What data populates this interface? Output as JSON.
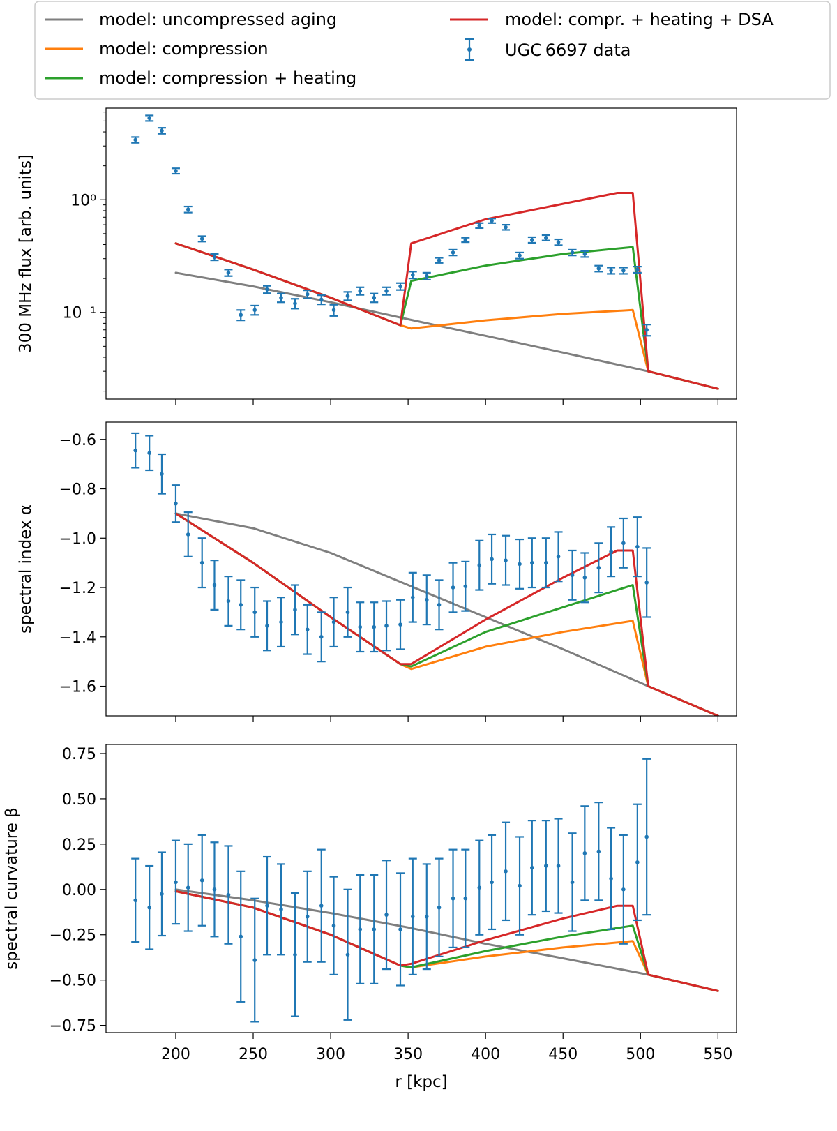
{
  "colors": {
    "gray": "#7f7f7f",
    "orange": "#ff7f0e",
    "green": "#2ca02c",
    "red": "#d62728",
    "blue": "#1f77b4"
  },
  "legend": {
    "entries": [
      {
        "key": "gray",
        "label": "model: uncompressed aging",
        "kind": "line"
      },
      {
        "key": "orange",
        "label": "model: compression",
        "kind": "line"
      },
      {
        "key": "green",
        "label": "model: compression + heating",
        "kind": "line"
      },
      {
        "key": "red",
        "label": "model: compr. + heating + DSA",
        "kind": "line"
      },
      {
        "key": "blue",
        "label": "UGC 6697 data",
        "kind": "errorbar"
      }
    ]
  },
  "chart_data": [
    {
      "type": "line",
      "panel": "flux",
      "ylabel": "300 MHz flux [arb. units]",
      "yscale": "log",
      "xlim": [
        155,
        562
      ],
      "ylim": [
        0.017,
        6.5
      ],
      "yticks": [
        {
          "value": 0.1,
          "label": "10⁻¹"
        },
        {
          "value": 1,
          "label": "10⁰"
        }
      ],
      "models": {
        "gray": {
          "x": [
            200,
            250,
            300,
            350,
            400,
            450,
            505,
            550
          ],
          "y": [
            0.225,
            0.17,
            0.123,
            0.087,
            0.062,
            0.044,
            0.03,
            0.021
          ]
        },
        "orange": {
          "x": [
            200,
            250,
            300,
            345,
            352,
            400,
            450,
            495,
            505,
            550
          ],
          "y": [
            0.41,
            0.24,
            0.135,
            0.077,
            0.072,
            0.085,
            0.097,
            0.105,
            0.03,
            0.021
          ]
        },
        "green": {
          "x": [
            200,
            250,
            300,
            345,
            352,
            400,
            450,
            495,
            505,
            550
          ],
          "y": [
            0.41,
            0.24,
            0.135,
            0.077,
            0.19,
            0.26,
            0.33,
            0.38,
            0.03,
            0.021
          ]
        },
        "red": {
          "x": [
            200,
            250,
            300,
            345,
            352,
            400,
            450,
            485,
            495,
            505,
            550
          ],
          "y": [
            0.41,
            0.24,
            0.135,
            0.077,
            0.41,
            0.67,
            0.92,
            1.15,
            1.15,
            0.03,
            0.021
          ]
        }
      },
      "data": {
        "x": [
          174,
          183,
          191,
          200,
          208,
          217,
          225,
          234,
          242,
          251,
          259,
          268,
          277,
          285,
          294,
          302,
          311,
          319,
          328,
          336,
          345,
          353,
          362,
          370,
          379,
          387,
          396,
          404,
          413,
          422,
          430,
          439,
          447,
          456,
          464,
          473,
          481,
          489,
          498,
          504
        ],
        "y": [
          3.4,
          5.3,
          4.1,
          1.8,
          0.82,
          0.45,
          0.31,
          0.225,
          0.095,
          0.105,
          0.16,
          0.135,
          0.12,
          0.145,
          0.13,
          0.105,
          0.14,
          0.155,
          0.135,
          0.155,
          0.17,
          0.215,
          0.21,
          0.29,
          0.34,
          0.44,
          0.59,
          0.65,
          0.57,
          0.32,
          0.44,
          0.46,
          0.42,
          0.34,
          0.33,
          0.245,
          0.235,
          0.235,
          0.24,
          0.07
        ],
        "err": [
          0.2,
          0.3,
          0.25,
          0.1,
          0.05,
          0.025,
          0.02,
          0.015,
          0.01,
          0.01,
          0.012,
          0.012,
          0.012,
          0.012,
          0.012,
          0.012,
          0.012,
          0.012,
          0.012,
          0.012,
          0.012,
          0.015,
          0.015,
          0.015,
          0.02,
          0.02,
          0.03,
          0.03,
          0.03,
          0.02,
          0.025,
          0.025,
          0.025,
          0.02,
          0.02,
          0.015,
          0.015,
          0.015,
          0.015,
          0.008
        ]
      }
    },
    {
      "type": "line",
      "panel": "alpha",
      "ylabel": "spectral index α",
      "yscale": "linear",
      "xlim": [
        155,
        562
      ],
      "ylim": [
        -1.72,
        -0.53
      ],
      "yticks": [
        {
          "value": -0.6,
          "label": "−0.6"
        },
        {
          "value": -0.8,
          "label": "−0.8"
        },
        {
          "value": -1.0,
          "label": "−1.0"
        },
        {
          "value": -1.2,
          "label": "−1.2"
        },
        {
          "value": -1.4,
          "label": "−1.4"
        },
        {
          "value": -1.6,
          "label": "−1.6"
        }
      ],
      "models": {
        "gray": {
          "x": [
            200,
            250,
            300,
            350,
            400,
            450,
            505,
            550
          ],
          "y": [
            -0.9,
            -0.96,
            -1.06,
            -1.19,
            -1.32,
            -1.45,
            -1.6,
            -1.72
          ]
        },
        "orange": {
          "x": [
            200,
            250,
            300,
            345,
            352,
            400,
            450,
            495,
            505,
            550
          ],
          "y": [
            -0.9,
            -1.1,
            -1.32,
            -1.51,
            -1.53,
            -1.44,
            -1.38,
            -1.335,
            -1.6,
            -1.72
          ]
        },
        "green": {
          "x": [
            200,
            250,
            300,
            345,
            352,
            400,
            450,
            495,
            505,
            550
          ],
          "y": [
            -0.9,
            -1.1,
            -1.32,
            -1.51,
            -1.52,
            -1.38,
            -1.28,
            -1.19,
            -1.6,
            -1.72
          ]
        },
        "red": {
          "x": [
            200,
            250,
            300,
            345,
            352,
            400,
            450,
            485,
            495,
            505,
            550
          ],
          "y": [
            -0.9,
            -1.1,
            -1.32,
            -1.51,
            -1.51,
            -1.33,
            -1.16,
            -1.05,
            -1.05,
            -1.6,
            -1.72
          ]
        }
      },
      "data": {
        "x": [
          174,
          183,
          191,
          200,
          208,
          217,
          225,
          234,
          242,
          251,
          259,
          268,
          277,
          285,
          294,
          302,
          311,
          319,
          328,
          336,
          345,
          353,
          362,
          370,
          379,
          387,
          396,
          404,
          413,
          422,
          430,
          439,
          447,
          456,
          464,
          473,
          481,
          489,
          498,
          504
        ],
        "y": [
          -0.645,
          -0.655,
          -0.74,
          -0.86,
          -0.985,
          -1.1,
          -1.19,
          -1.255,
          -1.27,
          -1.3,
          -1.355,
          -1.34,
          -1.29,
          -1.37,
          -1.4,
          -1.34,
          -1.3,
          -1.36,
          -1.36,
          -1.355,
          -1.35,
          -1.24,
          -1.25,
          -1.27,
          -1.2,
          -1.195,
          -1.11,
          -1.085,
          -1.09,
          -1.105,
          -1.1,
          -1.1,
          -1.075,
          -1.15,
          -1.16,
          -1.12,
          -1.055,
          -1.02,
          -1.035,
          -1.18
        ],
        "err": [
          0.07,
          0.07,
          0.08,
          0.075,
          0.09,
          0.1,
          0.1,
          0.1,
          0.1,
          0.1,
          0.1,
          0.1,
          0.1,
          0.1,
          0.1,
          0.1,
          0.1,
          0.1,
          0.1,
          0.1,
          0.1,
          0.1,
          0.1,
          0.1,
          0.1,
          0.1,
          0.1,
          0.1,
          0.1,
          0.1,
          0.1,
          0.1,
          0.1,
          0.1,
          0.1,
          0.1,
          0.1,
          0.1,
          0.12,
          0.14
        ]
      }
    },
    {
      "type": "line",
      "panel": "beta",
      "ylabel": "spectral curvature β",
      "xlabel": "r [kpc]",
      "yscale": "linear",
      "xlim": [
        155,
        562
      ],
      "ylim": [
        -0.79,
        0.8
      ],
      "xticks": [
        200,
        250,
        300,
        350,
        400,
        450,
        500,
        550
      ],
      "yticks": [
        {
          "value": 0.75,
          "label": "0.75"
        },
        {
          "value": 0.5,
          "label": "0.50"
        },
        {
          "value": 0.25,
          "label": "0.25"
        },
        {
          "value": 0,
          "label": "0.00"
        },
        {
          "value": -0.25,
          "label": "−0.25"
        },
        {
          "value": -0.5,
          "label": "−0.50"
        },
        {
          "value": -0.75,
          "label": "−0.75"
        }
      ],
      "models": {
        "gray": {
          "x": [
            200,
            250,
            300,
            350,
            400,
            450,
            505,
            550
          ],
          "y": [
            0.0,
            -0.06,
            -0.13,
            -0.21,
            -0.3,
            -0.38,
            -0.47,
            -0.56
          ]
        },
        "orange": {
          "x": [
            200,
            250,
            300,
            345,
            352,
            400,
            450,
            495,
            505,
            550
          ],
          "y": [
            -0.01,
            -0.1,
            -0.25,
            -0.42,
            -0.43,
            -0.37,
            -0.32,
            -0.285,
            -0.47,
            -0.56
          ]
        },
        "green": {
          "x": [
            200,
            250,
            300,
            345,
            352,
            400,
            450,
            495,
            505,
            550
          ],
          "y": [
            -0.01,
            -0.1,
            -0.25,
            -0.42,
            -0.43,
            -0.34,
            -0.26,
            -0.2,
            -0.47,
            -0.56
          ]
        },
        "red": {
          "x": [
            200,
            250,
            300,
            345,
            352,
            400,
            450,
            485,
            495,
            505,
            550
          ],
          "y": [
            -0.01,
            -0.1,
            -0.25,
            -0.42,
            -0.41,
            -0.28,
            -0.16,
            -0.09,
            -0.09,
            -0.47,
            -0.56
          ]
        }
      },
      "data": {
        "x": [
          174,
          183,
          191,
          200,
          208,
          217,
          225,
          234,
          242,
          251,
          259,
          268,
          277,
          285,
          294,
          302,
          311,
          319,
          328,
          336,
          345,
          353,
          362,
          370,
          379,
          387,
          396,
          404,
          413,
          422,
          430,
          439,
          447,
          456,
          464,
          473,
          481,
          489,
          498,
          504
        ],
        "y": [
          -0.06,
          -0.1,
          -0.025,
          0.04,
          0.01,
          0.05,
          0.0,
          -0.03,
          -0.26,
          -0.39,
          -0.09,
          -0.11,
          -0.36,
          -0.15,
          -0.09,
          -0.2,
          -0.36,
          -0.22,
          -0.22,
          -0.14,
          -0.22,
          -0.15,
          -0.15,
          -0.1,
          -0.05,
          -0.05,
          0.01,
          0.04,
          0.1,
          0.02,
          0.12,
          0.13,
          0.13,
          0.04,
          0.2,
          0.21,
          0.06,
          0.0,
          0.15,
          0.29
        ],
        "err": [
          0.23,
          0.23,
          0.23,
          0.23,
          0.24,
          0.25,
          0.26,
          0.27,
          0.36,
          0.34,
          0.27,
          0.25,
          0.34,
          0.25,
          0.31,
          0.27,
          0.36,
          0.3,
          0.3,
          0.3,
          0.31,
          0.32,
          0.29,
          0.27,
          0.27,
          0.27,
          0.26,
          0.26,
          0.27,
          0.27,
          0.26,
          0.25,
          0.26,
          0.27,
          0.26,
          0.27,
          0.28,
          0.3,
          0.32,
          0.43
        ]
      }
    }
  ]
}
